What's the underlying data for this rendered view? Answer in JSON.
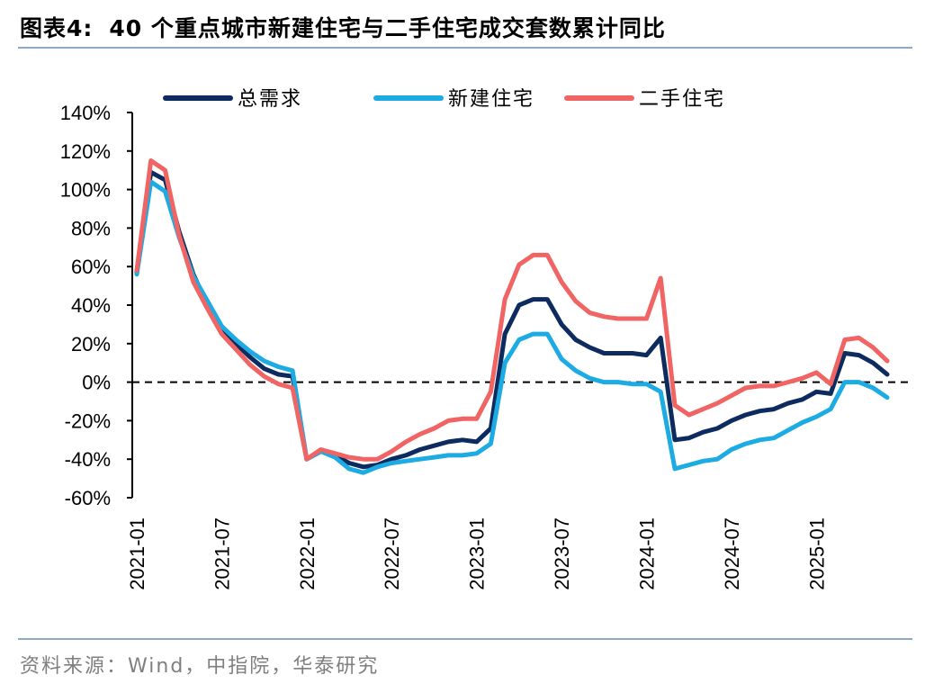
{
  "figure": {
    "title_prefix": "图表4:",
    "title_text": "40 个重点城市新建住宅与二手住宅成交套数累计同比",
    "source": "资料来源：Wind，中指院，华泰研究"
  },
  "chart_data": {
    "type": "line",
    "title": "40 个重点城市新建住宅与二手住宅成交套数累计同比",
    "x": [
      "2021-01",
      "2021-02",
      "2021-03",
      "2021-04",
      "2021-05",
      "2021-06",
      "2021-07",
      "2021-08",
      "2021-09",
      "2021-10",
      "2021-11",
      "2021-12",
      "2022-01",
      "2022-02",
      "2022-03",
      "2022-04",
      "2022-05",
      "2022-06",
      "2022-07",
      "2022-08",
      "2022-09",
      "2022-10",
      "2022-11",
      "2022-12",
      "2023-01",
      "2023-02",
      "2023-03",
      "2023-04",
      "2023-05",
      "2023-06",
      "2023-07",
      "2023-08",
      "2023-09",
      "2023-10",
      "2023-11",
      "2023-12",
      "2024-01",
      "2024-02",
      "2024-03",
      "2024-04",
      "2024-05",
      "2024-06",
      "2024-07",
      "2024-08",
      "2024-09",
      "2024-10",
      "2024-11",
      "2024-12",
      "2025-01",
      "2025-02",
      "2025-03",
      "2025-04",
      "2025-05",
      "2025-06"
    ],
    "x_tick_labels": [
      "2021-01",
      "2021-07",
      "2022-01",
      "2022-07",
      "2023-01",
      "2023-07",
      "2024-01",
      "2024-07",
      "2025-01"
    ],
    "y_tick_labels": [
      "140%",
      "120%",
      "100%",
      "80%",
      "60%",
      "40%",
      "20%",
      "0%",
      "-20%",
      "-40%",
      "-60%"
    ],
    "ylim": [
      -60,
      140
    ],
    "y_unit": "%",
    "zero_line": "dashed",
    "legend_position": "top",
    "series": [
      {
        "name": "总需求",
        "color": "#0d2b5e",
        "values": [
          57,
          109,
          105,
          78,
          56,
          40,
          28,
          20,
          13,
          7,
          4,
          3,
          -40,
          -36,
          -38,
          -42,
          -44,
          -43,
          -40,
          -38,
          -35,
          -33,
          -31,
          -30,
          -31,
          -24,
          25,
          40,
          43,
          43,
          30,
          22,
          18,
          15,
          15,
          15,
          14,
          23,
          -30,
          -29,
          -26,
          -24,
          -20,
          -17,
          -15,
          -14,
          -11,
          -9,
          -5,
          -6,
          15,
          14,
          10,
          4
        ]
      },
      {
        "name": "新建住宅",
        "color": "#1cabe2",
        "values": [
          56,
          104,
          99,
          75,
          55,
          42,
          29,
          22,
          16,
          11,
          8,
          6,
          -40,
          -36,
          -39,
          -45,
          -47,
          -44,
          -42,
          -41,
          -40,
          -39,
          -38,
          -38,
          -37,
          -32,
          10,
          22,
          25,
          25,
          12,
          6,
          2,
          0,
          0,
          -1,
          -1,
          -5,
          -45,
          -43,
          -41,
          -40,
          -35,
          -32,
          -30,
          -29,
          -25,
          -21,
          -18,
          -14,
          0,
          0,
          -3,
          -8
        ]
      },
      {
        "name": "二手住宅",
        "color": "#f06463",
        "values": [
          58,
          115,
          110,
          76,
          52,
          38,
          25,
          17,
          9,
          3,
          -1,
          -3,
          -40,
          -35,
          -37,
          -39,
          -40,
          -40,
          -36,
          -31,
          -27,
          -24,
          -20,
          -19,
          -19,
          -5,
          43,
          61,
          66,
          66,
          52,
          42,
          36,
          34,
          33,
          33,
          33,
          54,
          -12,
          -17,
          -14,
          -11,
          -7,
          -3,
          -2,
          -2,
          0,
          2,
          5,
          -1,
          22,
          23,
          18,
          11
        ]
      }
    ]
  }
}
